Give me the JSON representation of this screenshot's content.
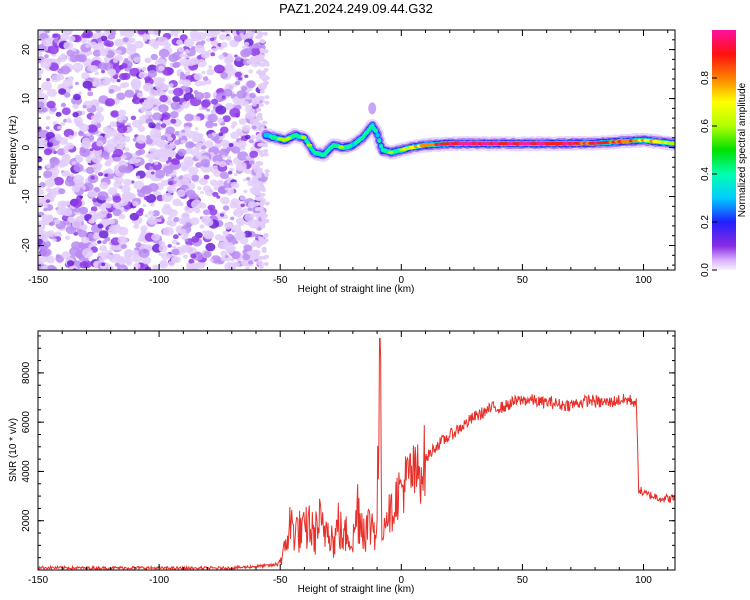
{
  "title": "PAZ1.2024.249.09.44.G32",
  "colorbar": {
    "label": "Normalized spectral amplitude",
    "ticks": [
      0.0,
      0.2,
      0.4,
      0.6,
      0.8
    ],
    "tick_labels": [
      "0.0",
      "0.2",
      "0.4",
      "0.6",
      "0.8"
    ],
    "range": [
      0,
      1
    ],
    "colormap": "rainbow (magenta-blue-cyan-green-yellow-red-pink)"
  },
  "chart_data": [
    {
      "type": "heatmap",
      "title": "PAZ1.2024.249.09.44.G32",
      "xlabel": "Height of straight line (km)",
      "ylabel": "Frequency (Hz)",
      "xlim": [
        -150,
        113
      ],
      "ylim": [
        -25,
        24
      ],
      "xticks": [
        -150,
        -100,
        -50,
        0,
        50,
        100
      ],
      "yticks": [
        -20,
        -10,
        0,
        10,
        20
      ],
      "noise_region_x": [
        -150,
        -57
      ],
      "ridge": {
        "x": [
          -56,
          -52,
          -48,
          -44,
          -40,
          -36,
          -32,
          -28,
          -24,
          -20,
          -16,
          -12,
          -10,
          -8,
          -4,
          0,
          4,
          10,
          20,
          40,
          60,
          80,
          90,
          100,
          113
        ],
        "freq": [
          2.5,
          2.0,
          1.5,
          2.5,
          2.0,
          -1.0,
          -1.5,
          0.5,
          0.0,
          0.5,
          2.0,
          4.5,
          3.0,
          -0.5,
          -1.0,
          -0.5,
          0.0,
          0.5,
          0.8,
          0.8,
          0.8,
          0.9,
          1.2,
          1.5,
          0.8
        ],
        "amplitude": [
          0.35,
          0.5,
          0.6,
          0.5,
          0.55,
          0.5,
          0.45,
          0.45,
          0.5,
          0.4,
          0.45,
          0.45,
          0.4,
          0.45,
          0.55,
          0.55,
          0.7,
          0.8,
          0.95,
          0.98,
          0.95,
          0.9,
          0.85,
          0.75,
          0.6
        ]
      }
    },
    {
      "type": "line",
      "xlabel": "Height of straight line (km)",
      "ylabel": "SNR (10 * v/v)",
      "xlim": [
        -150,
        113
      ],
      "ylim": [
        0,
        9700
      ],
      "xticks": [
        -150,
        -100,
        -50,
        0,
        50,
        100
      ],
      "yticks": [
        2000,
        4000,
        6000,
        8000
      ],
      "color": "#e8302a",
      "series": [
        {
          "x": [
            -150,
            -130,
            -110,
            -90,
            -70,
            -52,
            -49,
            -46,
            -43,
            -40,
            -38,
            -36,
            -34,
            -32,
            -30,
            -28,
            -26,
            -24,
            -22,
            -20,
            -18,
            -16,
            -14,
            -12,
            -10,
            -9,
            -8,
            -6,
            -4,
            -2,
            0,
            2,
            4,
            6,
            8,
            10,
            14,
            18,
            22,
            26,
            30,
            34,
            38,
            42,
            46,
            50,
            54,
            58,
            62,
            66,
            70,
            74,
            78,
            82,
            86,
            90,
            94,
            97,
            98,
            100,
            104,
            108,
            113
          ],
          "y": [
            100,
            80,
            90,
            70,
            80,
            200,
            500,
            1800,
            1600,
            1500,
            1900,
            1300,
            2000,
            1400,
            2100,
            1000,
            1900,
            1200,
            1600,
            1100,
            2600,
            1800,
            1700,
            1900,
            1700,
            9400,
            1500,
            2400,
            2300,
            3000,
            3300,
            3600,
            3900,
            3800,
            4100,
            4500,
            5000,
            5300,
            5600,
            5900,
            6200,
            6400,
            6600,
            6600,
            6800,
            6900,
            6900,
            6800,
            6800,
            6700,
            6700,
            6800,
            6900,
            6800,
            6800,
            6900,
            6900,
            6800,
            3300,
            3100,
            3000,
            2900,
            2900
          ]
        }
      ]
    }
  ]
}
